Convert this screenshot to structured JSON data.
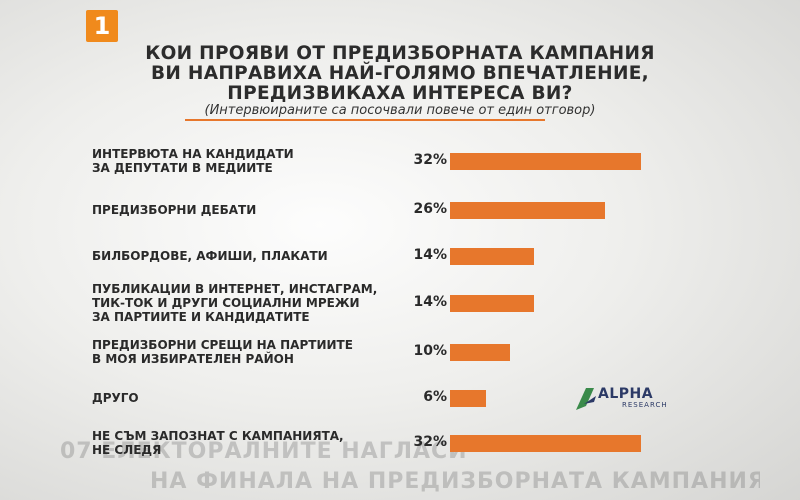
{
  "channel_logo": "1",
  "title_lines": [
    "КОИ ПРОЯВИ ОТ ПРЕДИЗБОРНАТА КАМПАНИЯ",
    "ВИ  НАПРАВИХА НАЙ-ГОЛЯМО ВПЕЧАТЛЕНИЕ,",
    "ПРЕДИЗВИКАХА ИНТЕРЕСА ВИ?"
  ],
  "subtitle": "(Интервюираните са посочвали повече от един отговор)",
  "source_logo": {
    "name": "ALPHA",
    "sub": "RESEARCH"
  },
  "background_ticker": [
    "07",
    "ЕЛЕКТОРАЛНИТЕ НАГЛАСИ",
    "НА ФИНАЛА НА ПРЕДИЗБОРНАТА КАМПАНИЯ"
  ],
  "colors": {
    "bar": "#e7772c",
    "brand": "#f08a1c",
    "logo_navy": "#2c3a66"
  },
  "chart_data": {
    "type": "bar",
    "orientation": "horizontal",
    "unit": "%",
    "categories": [
      "ИНТЕРВЮТА НА КАНДИДАТИ\nЗА ДЕПУТАТИ В МЕДИИТЕ",
      "ПРЕДИЗБОРНИ ДЕБАТИ",
      "БИЛБОРДОВЕ, АФИШИ, ПЛАКАТИ",
      "ПУБЛИКАЦИИ В ИНТЕРНЕТ, ИНСТАГРАМ,\nТИК-ТОК И ДРУГИ СОЦИАЛНИ МРЕЖИ\nЗА ПАРТИИТЕ И КАНДИДАТИТЕ",
      "ПРЕДИЗБОРНИ СРЕЩИ НА ПАРТИИТЕ\nВ МОЯ ИЗБИРАТЕЛЕН РАЙОН",
      "ДРУГО",
      "НЕ СЪМ ЗАПОЗНАТ С КАМПАНИЯТА,\nНЕ СЛЕДЯ"
    ],
    "values": [
      32,
      26,
      14,
      14,
      10,
      6,
      32
    ],
    "value_labels": [
      "32%",
      "26%",
      "14%",
      "14%",
      "10%",
      "6%",
      "32%"
    ],
    "xlim": [
      0,
      32
    ],
    "grid": false,
    "legend": "none"
  }
}
